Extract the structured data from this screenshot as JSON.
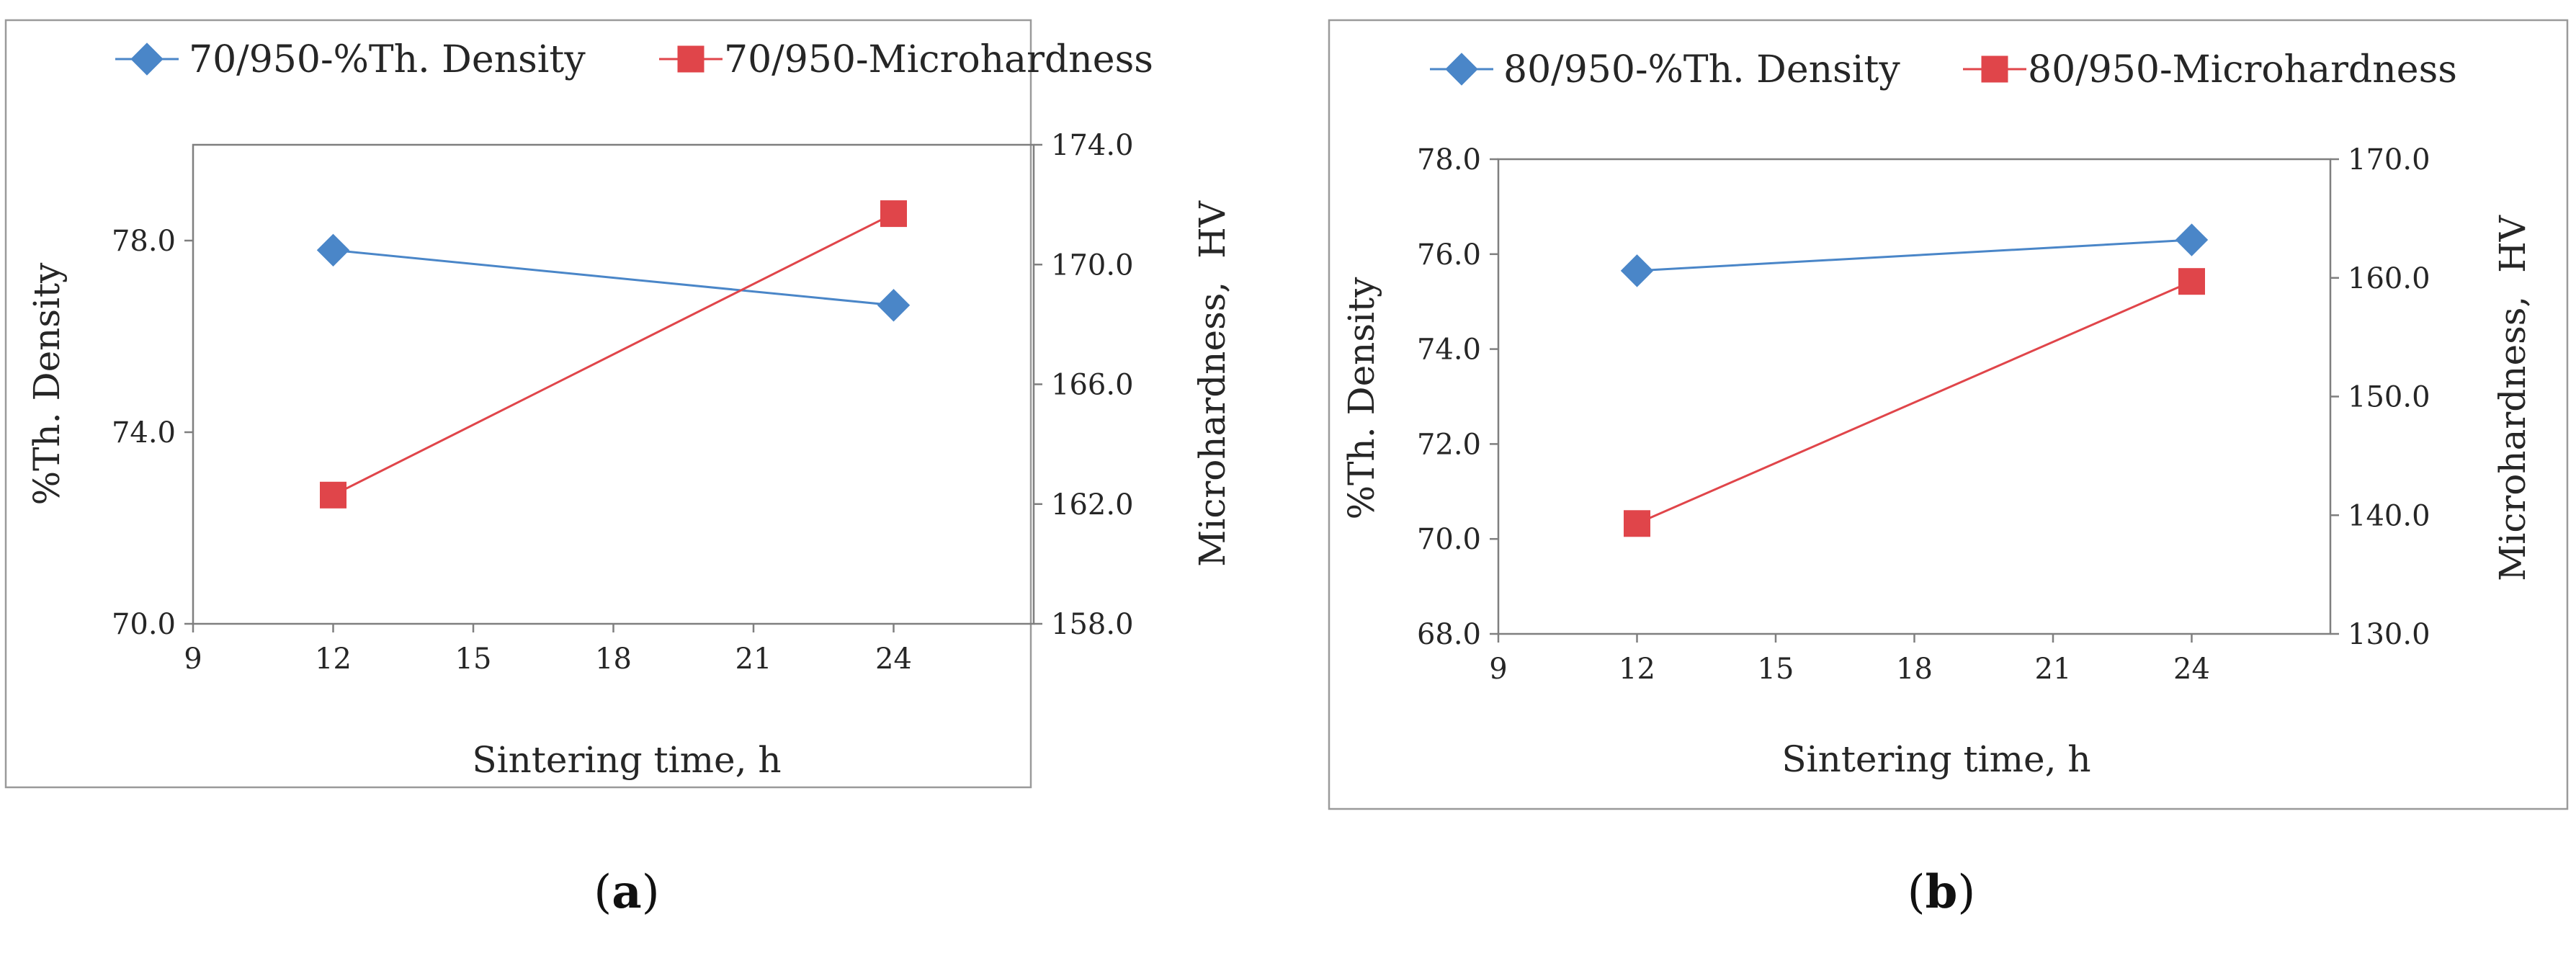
{
  "chart_data": [
    {
      "type": "line",
      "caption_letter": "a",
      "x": [
        12,
        24
      ],
      "xlabel": "Sintering time, h",
      "xlim": [
        9,
        27
      ],
      "xticks": [
        9,
        12,
        15,
        18,
        21,
        24
      ],
      "ylabel": "%Th. Density",
      "ylim": [
        70.0,
        80.0
      ],
      "yticks": [
        "70.0",
        "74.0",
        "78.0"
      ],
      "y2label": "Microhardness,  HV",
      "y2lim": [
        158.0,
        174.0
      ],
      "y2ticks": [
        "158.0",
        "162.0",
        "166.0",
        "170.0",
        "174.0"
      ],
      "legend_position": "top",
      "series": [
        {
          "name": "70/950-%Th. Density",
          "axis": "left",
          "marker": "diamond",
          "color": "#4a86c8",
          "values": [
            77.8,
            76.65
          ]
        },
        {
          "name": "70/950-Microhardness",
          "axis": "right",
          "marker": "square",
          "color": "#e0454a",
          "values": [
            162.3,
            171.7
          ]
        }
      ]
    },
    {
      "type": "line",
      "caption_letter": "b",
      "x": [
        12,
        24
      ],
      "xlabel": "Sintering time, h",
      "xlim": [
        9,
        27
      ],
      "xticks": [
        9,
        12,
        15,
        18,
        21,
        24
      ],
      "ylabel": "%Th. Density",
      "ylim": [
        68.0,
        78.0
      ],
      "yticks": [
        "68.0",
        "70.0",
        "72.0",
        "74.0",
        "76.0",
        "78.0"
      ],
      "y2label": "Microhardness,  HV",
      "y2lim": [
        130.0,
        170.0
      ],
      "y2ticks": [
        "130.0",
        "140.0",
        "150.0",
        "160.0",
        "170.0"
      ],
      "legend_position": "top",
      "series": [
        {
          "name": "80/950-%Th. Density",
          "axis": "left",
          "marker": "diamond",
          "color": "#4a86c8",
          "values": [
            75.65,
            76.3
          ]
        },
        {
          "name": "80/950-Microhardness",
          "axis": "right",
          "marker": "square",
          "color": "#e0454a",
          "values": [
            139.3,
            159.7
          ]
        }
      ]
    }
  ]
}
